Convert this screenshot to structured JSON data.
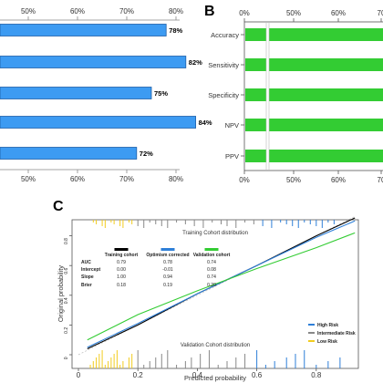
{
  "chart_data": [
    {
      "panel": "",
      "type": "bar",
      "orientation": "horizontal",
      "color": "#3d9bf2",
      "xlim": [
        40,
        90
      ],
      "x_ticks": [
        "50%",
        "60%",
        "70%",
        "80%"
      ],
      "values": [
        78,
        82,
        75,
        84,
        72
      ],
      "value_labels": [
        "78%",
        "82%",
        "75%",
        "84%",
        "72%"
      ]
    },
    {
      "panel": "B",
      "type": "bar",
      "orientation": "horizontal",
      "color": "#33cc33",
      "categories": [
        "Accuracy",
        "Sensitivity",
        "Specificity",
        "NPV",
        "PPV"
      ],
      "x_ticks": [
        "0%",
        "50%",
        "60%",
        "70"
      ],
      "axis_break": true
    },
    {
      "panel": "C",
      "type": "line",
      "xlabel": "Predicted probability",
      "ylabel": "Original probability",
      "xlim": [
        0,
        1
      ],
      "ylim": [
        0,
        1
      ],
      "x_ticks": [
        "0",
        "0.2",
        "0.4",
        "0.6",
        "0.8"
      ],
      "y_ticks": [
        "0",
        "0.2",
        "0.4",
        "0.6",
        "0.8"
      ],
      "top_annotation": "Training Cohort distribution",
      "bottom_annotation": "Validation Cohort distribution",
      "series": [
        {
          "name": "Training cohort",
          "color": "#000000",
          "x": [
            0.03,
            0.2,
            0.4,
            0.6,
            0.8,
            0.93
          ],
          "y": [
            0.04,
            0.2,
            0.41,
            0.6,
            0.8,
            0.92
          ]
        },
        {
          "name": "Optimism corrected",
          "color": "#2e7fd8",
          "x": [
            0.03,
            0.2,
            0.4,
            0.6,
            0.8,
            0.93
          ],
          "y": [
            0.05,
            0.21,
            0.41,
            0.6,
            0.79,
            0.9
          ]
        },
        {
          "name": "Validation cohort",
          "color": "#33cc33",
          "x": [
            0.03,
            0.2,
            0.4,
            0.6,
            0.8,
            0.93
          ],
          "y": [
            0.1,
            0.27,
            0.43,
            0.58,
            0.72,
            0.82
          ]
        }
      ],
      "stats": {
        "rows": [
          {
            "label": "AUC",
            "values": [
              "0.79",
              "0.78",
              "0.74"
            ]
          },
          {
            "label": "Intercept",
            "values": [
              "0.00",
              "-0.01",
              "0.08"
            ]
          },
          {
            "label": "Slope",
            "values": [
              "1.00",
              "0.94",
              "0.74"
            ]
          },
          {
            "label": "Brier",
            "values": [
              "0.18",
              "0.19",
              "0.20"
            ]
          }
        ]
      },
      "risk_legend": [
        {
          "name": "High Risk",
          "color": "#2e7fd8"
        },
        {
          "name": "Intermediate Risk",
          "color": "#888888"
        },
        {
          "name": "Low Risk",
          "color": "#f2cc1f"
        }
      ]
    }
  ]
}
